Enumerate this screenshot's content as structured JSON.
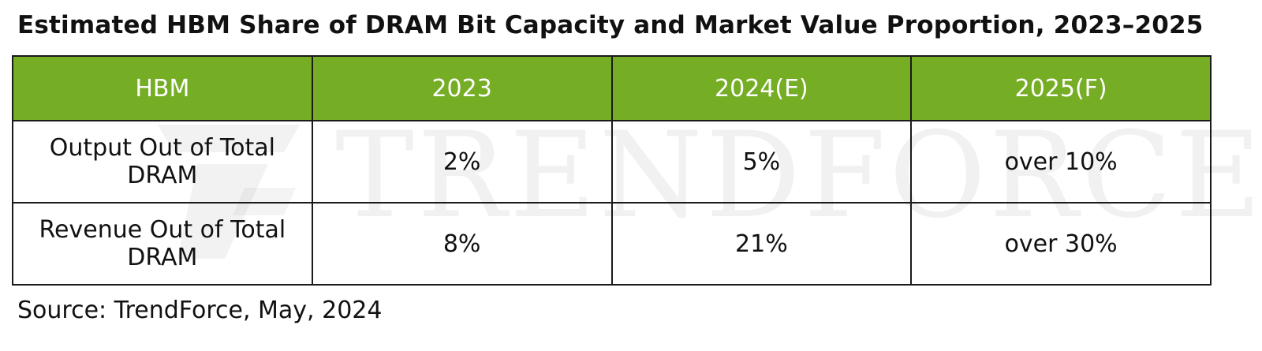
{
  "chart_data": {
    "type": "table",
    "title": "Estimated HBM Share of DRAM Bit Capacity and Market Value Proportion, 2023–2025",
    "columns": [
      "HBM",
      "2023",
      "2024(E)",
      "2025(F)"
    ],
    "rows": [
      [
        "Output Out of Total DRAM",
        "2%",
        "5%",
        "over 10%"
      ],
      [
        "Revenue Out of Total DRAM",
        "8%",
        "21%",
        "over 30%"
      ]
    ],
    "source": "Source: TrendForce, May, 2024",
    "watermark": "TRENDFORCE",
    "colors": {
      "header_bg": "#75ad25",
      "header_text": "#ffffff",
      "border": "#1a1a1a"
    }
  }
}
